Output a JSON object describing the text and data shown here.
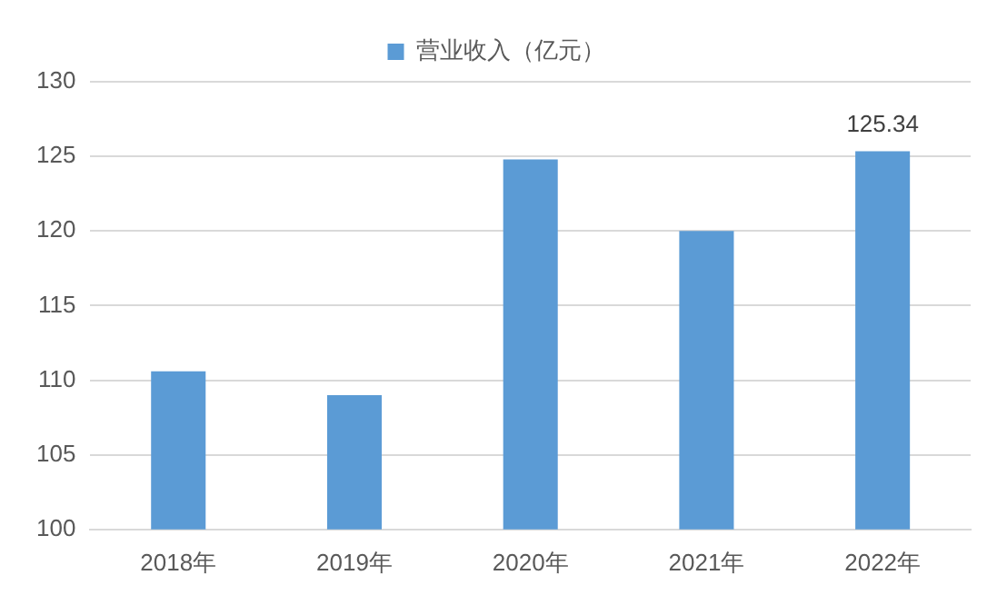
{
  "chart_data": {
    "type": "bar",
    "categories": [
      "2018年",
      "2019年",
      "2020年",
      "2021年",
      "2022年"
    ],
    "series": [
      {
        "name": "营业收入（亿元）",
        "color": "#5b9bd5",
        "values": [
          110.6,
          109.0,
          124.8,
          120.0,
          125.34
        ]
      }
    ],
    "value_labels": [
      null,
      null,
      null,
      null,
      "125.34"
    ],
    "ylim": [
      100,
      130
    ],
    "yticks": [
      100,
      105,
      110,
      115,
      120,
      125,
      130
    ],
    "grid": "y",
    "legend": "top"
  }
}
